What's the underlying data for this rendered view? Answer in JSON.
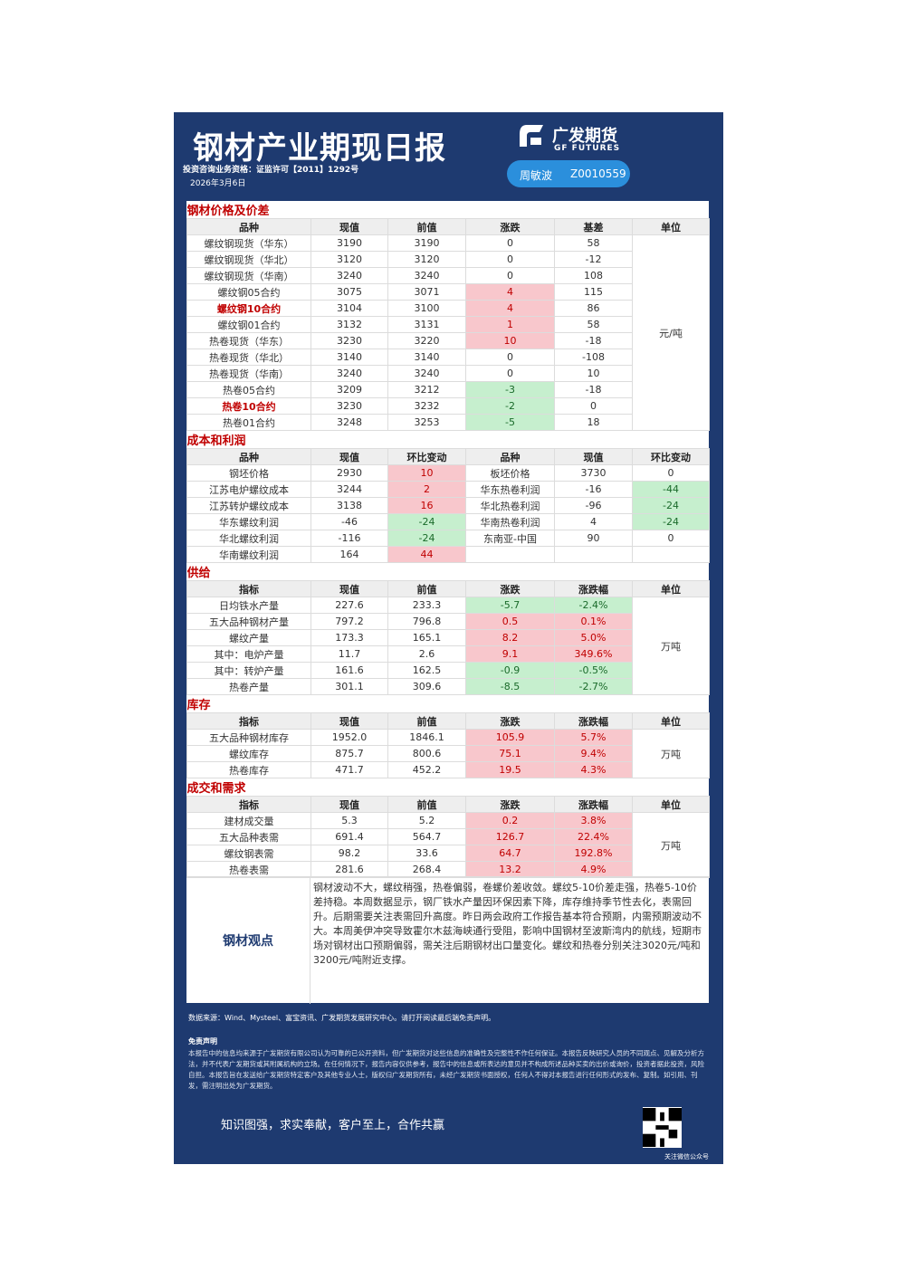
{
  "header": {
    "title": "钢材产业期现日报",
    "license": "投资咨询业务资格：证监许可【2011】1292号",
    "date": "2026年3月6日",
    "logo_cn": "广发期货",
    "logo_en": "GF FUTURES",
    "analyst": "周敏波",
    "analyst_id": "Z0010559"
  },
  "sections": [
    {
      "title": "钢材价格及价差",
      "columns": [
        "品种",
        "现值",
        "前值",
        "涨跌",
        "基差",
        "单位"
      ],
      "unit": "元/吨",
      "colored_columns": [
        3
      ],
      "highlight_rows": [
        4,
        10
      ],
      "rows": [
        [
          "螺纹钢现货（华东）",
          "3190",
          "3190",
          "0",
          "58"
        ],
        [
          "螺纹钢现货（华北）",
          "3120",
          "3120",
          "0",
          "-12"
        ],
        [
          "螺纹钢现货（华南）",
          "3240",
          "3240",
          "0",
          "108"
        ],
        [
          "螺纹钢05合约",
          "3075",
          "3071",
          "4",
          "115"
        ],
        [
          "螺纹钢10合约",
          "3104",
          "3100",
          "4",
          "86"
        ],
        [
          "螺纹钢01合约",
          "3132",
          "3131",
          "1",
          "58"
        ],
        [
          "热卷现货（华东）",
          "3230",
          "3220",
          "10",
          "-18"
        ],
        [
          "热卷现货（华北）",
          "3140",
          "3140",
          "0",
          "-108"
        ],
        [
          "热卷现货（华南）",
          "3240",
          "3240",
          "0",
          "10"
        ],
        [
          "热卷05合约",
          "3209",
          "3212",
          "-3",
          "-18"
        ],
        [
          "热卷10合约",
          "3230",
          "3232",
          "-2",
          "0"
        ],
        [
          "热卷01合约",
          "3248",
          "3253",
          "-5",
          "18"
        ]
      ]
    },
    {
      "title": "成本和利润",
      "columns": [
        "品种",
        "现值",
        "环比变动",
        "品种",
        "现值",
        "环比变动"
      ],
      "colored_columns": [
        2,
        5
      ],
      "rows": [
        [
          "钢坯价格",
          "2930",
          "10",
          "板坯价格",
          "3730",
          "0"
        ],
        [
          "江苏电炉螺纹成本",
          "3244",
          "2",
          "华东热卷利润",
          "-16",
          "-44"
        ],
        [
          "江苏转炉螺纹成本",
          "3138",
          "16",
          "华北热卷利润",
          "-96",
          "-24"
        ],
        [
          "华东螺纹利润",
          "-46",
          "-24",
          "华南热卷利润",
          "4",
          "-24"
        ],
        [
          "华北螺纹利润",
          "-116",
          "-24",
          "东南亚-中国",
          "90",
          "0"
        ],
        [
          "华南螺纹利润",
          "164",
          "44"
        ]
      ]
    },
    {
      "title": "供给",
      "columns": [
        "指标",
        "现值",
        "前值",
        "涨跌",
        "涨跌幅",
        "单位"
      ],
      "unit": "万吨",
      "colored_columns": [
        3,
        4
      ],
      "rows": [
        [
          "日均铁水产量",
          "227.6",
          "233.3",
          "-5.7",
          "-2.4%"
        ],
        [
          "五大品种钢材产量",
          "797.2",
          "796.8",
          "0.5",
          "0.1%"
        ],
        [
          "螺纹产量",
          "173.3",
          "165.1",
          "8.2",
          "5.0%"
        ],
        [
          "其中：电炉产量",
          "11.7",
          "2.6",
          "9.1",
          "349.6%"
        ],
        [
          "其中：转炉产量",
          "161.6",
          "162.5",
          "-0.9",
          "-0.5%"
        ],
        [
          "热卷产量",
          "301.1",
          "309.6",
          "-8.5",
          "-2.7%"
        ]
      ]
    },
    {
      "title": "库存",
      "columns": [
        "指标",
        "现值",
        "前值",
        "涨跌",
        "涨跌幅",
        "单位"
      ],
      "unit": "万吨",
      "colored_columns": [
        3,
        4
      ],
      "rows": [
        [
          "五大品种钢材库存",
          "1952.0",
          "1846.1",
          "105.9",
          "5.7%"
        ],
        [
          "螺纹库存",
          "875.7",
          "800.6",
          "75.1",
          "9.4%"
        ],
        [
          "热卷库存",
          "471.7",
          "452.2",
          "19.5",
          "4.3%"
        ]
      ]
    },
    {
      "title": "成交和需求",
      "columns": [
        "指标",
        "现值",
        "前值",
        "涨跌",
        "涨跌幅",
        "单位"
      ],
      "unit": "万吨",
      "colored_columns": [
        3,
        4
      ],
      "rows": [
        [
          "建材成交量",
          "5.3",
          "5.2",
          "0.2",
          "3.8%"
        ],
        [
          "五大品种表需",
          "691.4",
          "564.7",
          "126.7",
          "22.4%"
        ],
        [
          "螺纹钢表需",
          "98.2",
          "33.6",
          "64.7",
          "192.8%"
        ],
        [
          "热卷表需",
          "281.6",
          "268.4",
          "13.2",
          "4.9%"
        ]
      ]
    }
  ],
  "opinion": {
    "label": "钢材观点",
    "text": "钢材波动不大，螺纹稍强，热卷偏弱，卷螺价差收敛。螺纹5-10价差走强，热卷5-10价差持稳。本周数据显示，钢厂铁水产量因环保因素下降，库存维持季节性去化，表需回升。后期需要关注表需回升高度。昨日两会政府工作报告基本符合预期，内需预期波动不大。本周美伊冲突导致霍尔木兹海峡通行受阻，影响中国钢材至波斯湾内的航线，短期市场对钢材出口预期偏弱，需关注后期钢材出口量变化。螺纹和热卷分别关注3020元/吨和3200元/吨附近支撑。"
  },
  "footer": {
    "source": "数据来源：Wind、Mysteel、富宝资讯、广发期货发展研究中心。请打开阅读最后端免责声明。",
    "disclaimer_title": "免责声明",
    "disclaimer": "本报告中的信息均来源于广发期货有限公司认为可靠的已公开资料，但广发期货对这些信息的准确性及完整性不作任何保证。本报告反映研究人员的不同观点、见解及分析方法，并不代表广发期货或其附属机构的立场。在任何情况下，报告内容仅供参考，报告中的信息或所表达的意见并不构成所述品种买卖的出价或询价，投资者据此投资，风险自担。本报告旨在发送给广发期货特定客户及其他专业人士，版权归广发期货所有，未经广发期货书面授权，任何人不得对本报告进行任何形式的发布、复制。如引用、刊发，需注明出处为广发期货。",
    "slogan": "知识图强，求实奉献，客户至上，合作共赢",
    "qr_caption": "关注微信公众号"
  }
}
